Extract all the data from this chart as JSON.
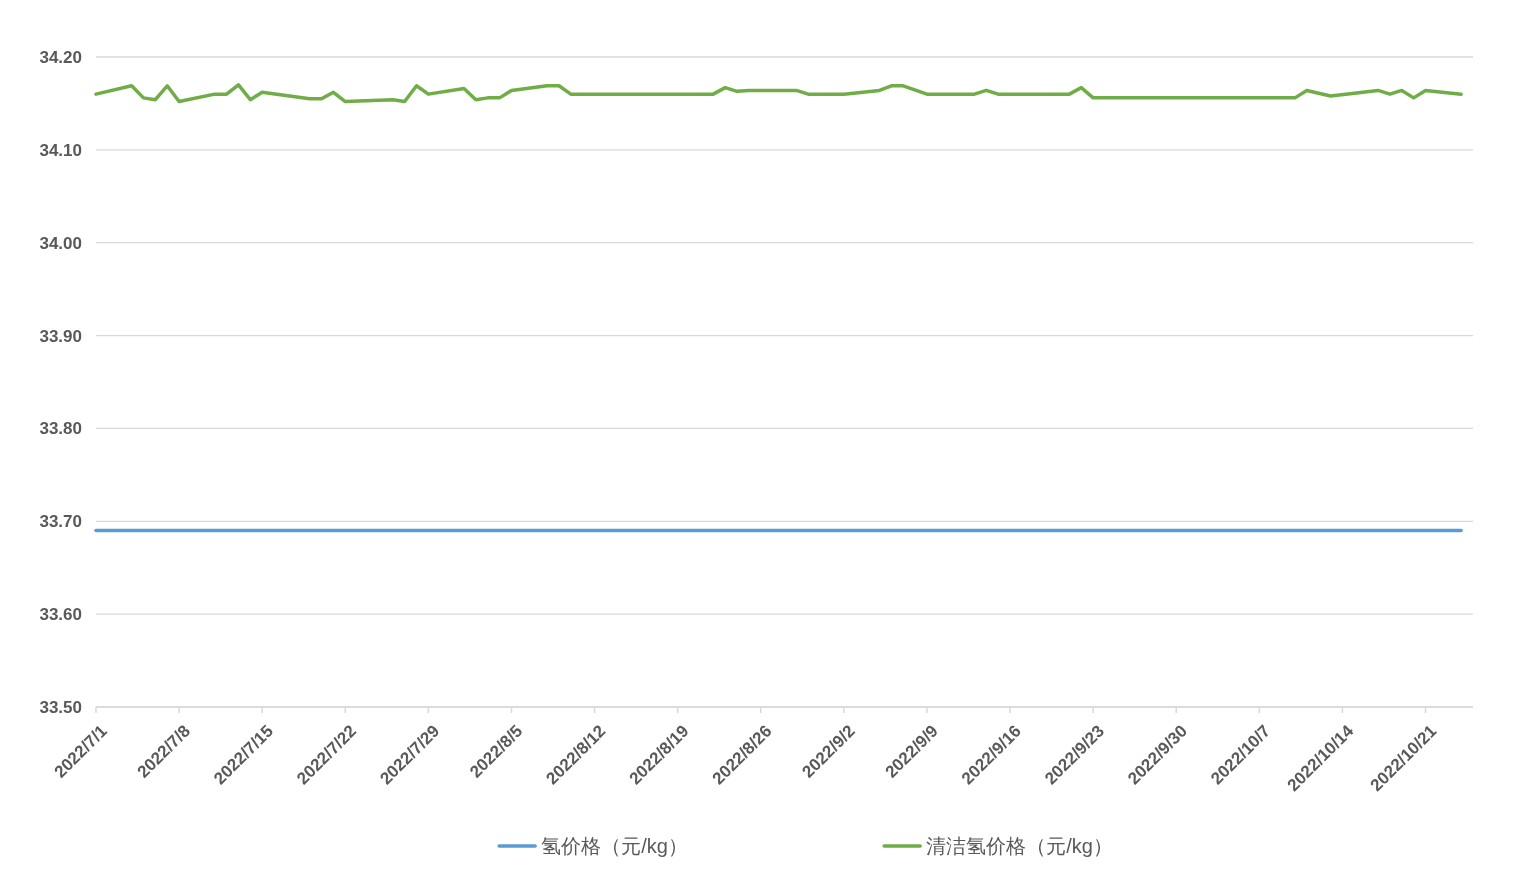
{
  "chart_data": {
    "type": "line",
    "xlim": [
      "2022-07-01",
      "2022-10-25"
    ],
    "ylim": [
      33.5,
      34.2
    ],
    "xticks": [
      {
        "value": "2022-07-01",
        "label": "2022/7/1"
      },
      {
        "value": "2022-07-08",
        "label": "2022/7/8"
      },
      {
        "value": "2022-07-15",
        "label": "2022/7/15"
      },
      {
        "value": "2022-07-22",
        "label": "2022/7/22"
      },
      {
        "value": "2022-07-29",
        "label": "2022/7/29"
      },
      {
        "value": "2022-08-05",
        "label": "2022/8/5"
      },
      {
        "value": "2022-08-12",
        "label": "2022/8/12"
      },
      {
        "value": "2022-08-19",
        "label": "2022/8/19"
      },
      {
        "value": "2022-08-26",
        "label": "2022/8/26"
      },
      {
        "value": "2022-09-02",
        "label": "2022/9/2"
      },
      {
        "value": "2022-09-09",
        "label": "2022/9/9"
      },
      {
        "value": "2022-09-16",
        "label": "2022/9/16"
      },
      {
        "value": "2022-09-23",
        "label": "2022/9/23"
      },
      {
        "value": "2022-09-30",
        "label": "2022/9/30"
      },
      {
        "value": "2022-10-07",
        "label": "2022/10/7"
      },
      {
        "value": "2022-10-14",
        "label": "2022/10/14"
      },
      {
        "value": "2022-10-21",
        "label": "2022/10/21"
      }
    ],
    "yticks": [
      {
        "value": 33.5,
        "label": "33.50"
      },
      {
        "value": 33.6,
        "label": "33.60"
      },
      {
        "value": 33.7,
        "label": "33.70"
      },
      {
        "value": 33.8,
        "label": "33.80"
      },
      {
        "value": 33.9,
        "label": "33.90"
      },
      {
        "value": 34.0,
        "label": "34.00"
      },
      {
        "value": 34.1,
        "label": "34.10"
      },
      {
        "value": 34.2,
        "label": "34.20"
      }
    ],
    "grid": "y",
    "legend": "bottom",
    "series": [
      {
        "name": "氢价格（元/kg）",
        "color": "#5b9bd5",
        "x": [
          "2022-07-01",
          "2022-10-24"
        ],
        "values": [
          33.69,
          33.69
        ]
      },
      {
        "name": "清洁氢价格（元/kg）",
        "color": "#70ad47",
        "x": [
          "2022-07-01",
          "2022-07-04",
          "2022-07-05",
          "2022-07-06",
          "2022-07-07",
          "2022-07-08",
          "2022-07-11",
          "2022-07-12",
          "2022-07-13",
          "2022-07-14",
          "2022-07-15",
          "2022-07-19",
          "2022-07-20",
          "2022-07-21",
          "2022-07-22",
          "2022-07-26",
          "2022-07-27",
          "2022-07-28",
          "2022-07-29",
          "2022-08-01",
          "2022-08-02",
          "2022-08-03",
          "2022-08-04",
          "2022-08-05",
          "2022-08-08",
          "2022-08-09",
          "2022-08-10",
          "2022-08-22",
          "2022-08-23",
          "2022-08-24",
          "2022-08-25",
          "2022-08-29",
          "2022-08-30",
          "2022-09-02",
          "2022-09-05",
          "2022-09-06",
          "2022-09-07",
          "2022-09-09",
          "2022-09-13",
          "2022-09-14",
          "2022-09-15",
          "2022-09-21",
          "2022-09-22",
          "2022-09-23",
          "2022-10-10",
          "2022-10-11",
          "2022-10-13",
          "2022-10-17",
          "2022-10-18",
          "2022-10-19",
          "2022-10-20",
          "2022-10-21",
          "2022-10-24"
        ],
        "values": [
          34.16,
          34.169,
          34.156,
          34.154,
          34.169,
          34.152,
          34.16,
          34.16,
          34.17,
          34.154,
          34.162,
          34.155,
          34.155,
          34.162,
          34.152,
          34.154,
          34.152,
          34.169,
          34.16,
          34.166,
          34.154,
          34.156,
          34.156,
          34.164,
          34.169,
          34.169,
          34.16,
          34.16,
          34.167,
          34.163,
          34.164,
          34.164,
          34.16,
          34.16,
          34.164,
          34.169,
          34.169,
          34.16,
          34.16,
          34.164,
          34.16,
          34.16,
          34.167,
          34.156,
          34.156,
          34.164,
          34.158,
          34.164,
          34.16,
          34.164,
          34.156,
          34.164,
          34.16
        ]
      }
    ]
  }
}
